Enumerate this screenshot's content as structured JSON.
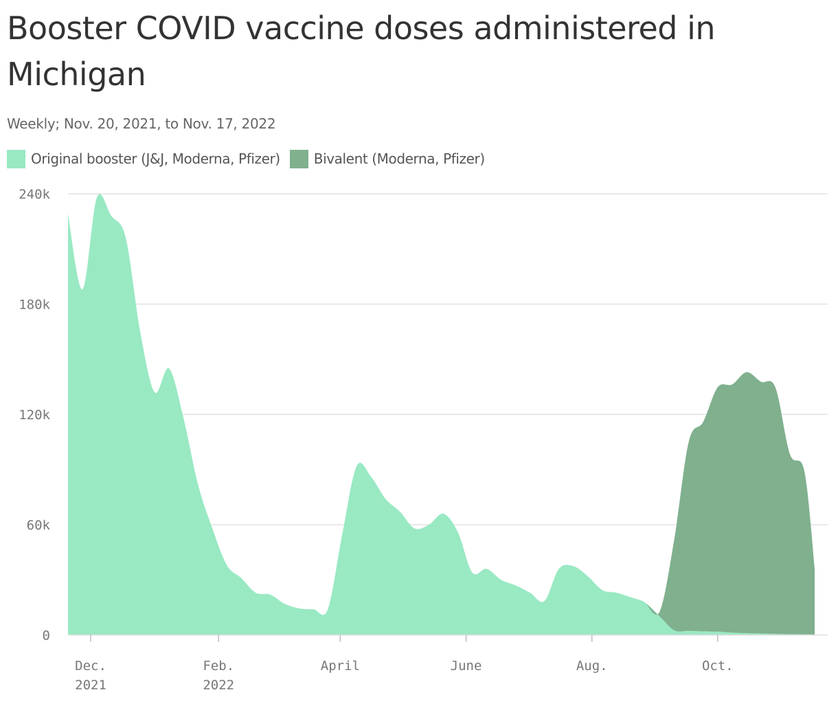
{
  "chart_data": {
    "type": "area",
    "title": "Booster COVID vaccine doses administered in Michigan",
    "subtitle": "Weekly; Nov. 20, 2021, to Nov. 17, 2022",
    "xlabel": "",
    "ylabel": "",
    "x_range": [
      "2021-11-20",
      "2022-11-17"
    ],
    "ylim": [
      0,
      240000
    ],
    "y_ticks": [
      {
        "value": 0,
        "label": "0"
      },
      {
        "value": 60000,
        "label": "60k"
      },
      {
        "value": 120000,
        "label": "120k"
      },
      {
        "value": 180000,
        "label": "180k"
      },
      {
        "value": 240000,
        "label": "240k"
      }
    ],
    "x_ticks": [
      {
        "date": "2021-12-01",
        "line1": "Dec.",
        "line2": "2021"
      },
      {
        "date": "2022-02-01",
        "line1": "Feb.",
        "line2": "2022"
      },
      {
        "date": "2022-04-01",
        "line1": "April",
        "line2": ""
      },
      {
        "date": "2022-06-01",
        "line1": "June",
        "line2": ""
      },
      {
        "date": "2022-08-01",
        "line1": "Aug.",
        "line2": ""
      },
      {
        "date": "2022-10-01",
        "line1": "Oct.",
        "line2": ""
      }
    ],
    "grid": true,
    "legend": "top-left",
    "stacked": true,
    "series": [
      {
        "name": "Original booster (J&J, Moderna, Pfizer)",
        "color": "#99e9c3",
        "points": [
          [
            "2021-11-20",
            229000
          ],
          [
            "2021-11-27",
            188000
          ],
          [
            "2021-12-04",
            238000
          ],
          [
            "2021-12-11",
            228000
          ],
          [
            "2021-12-18",
            216000
          ],
          [
            "2021-12-25",
            165000
          ],
          [
            "2022-01-01",
            132000
          ],
          [
            "2022-01-08",
            145000
          ],
          [
            "2022-01-15",
            118000
          ],
          [
            "2022-01-22",
            82000
          ],
          [
            "2022-01-29",
            58000
          ],
          [
            "2022-02-05",
            38000
          ],
          [
            "2022-02-12",
            31000
          ],
          [
            "2022-02-19",
            23000
          ],
          [
            "2022-02-26",
            22000
          ],
          [
            "2022-03-05",
            17000
          ],
          [
            "2022-03-12",
            14500
          ],
          [
            "2022-03-19",
            14000
          ],
          [
            "2022-03-26",
            14000
          ],
          [
            "2022-04-02",
            55000
          ],
          [
            "2022-04-09",
            92000
          ],
          [
            "2022-04-16",
            86000
          ],
          [
            "2022-04-23",
            74000
          ],
          [
            "2022-04-30",
            67000
          ],
          [
            "2022-05-07",
            58000
          ],
          [
            "2022-05-14",
            60000
          ],
          [
            "2022-05-21",
            66000
          ],
          [
            "2022-05-28",
            56000
          ],
          [
            "2022-06-04",
            34000
          ],
          [
            "2022-06-11",
            36000
          ],
          [
            "2022-06-18",
            30000
          ],
          [
            "2022-06-25",
            27000
          ],
          [
            "2022-07-02",
            23000
          ],
          [
            "2022-07-09",
            18500
          ],
          [
            "2022-07-16",
            36000
          ],
          [
            "2022-07-23",
            37500
          ],
          [
            "2022-07-30",
            32000
          ],
          [
            "2022-08-06",
            24500
          ],
          [
            "2022-08-13",
            23000
          ],
          [
            "2022-08-20",
            20500
          ],
          [
            "2022-08-27",
            17500
          ],
          [
            "2022-09-03",
            10000
          ],
          [
            "2022-09-10",
            2500
          ],
          [
            "2022-09-17",
            2300
          ],
          [
            "2022-09-24",
            2000
          ],
          [
            "2022-10-01",
            1800
          ],
          [
            "2022-10-08",
            1300
          ],
          [
            "2022-10-15",
            1000
          ],
          [
            "2022-10-22",
            800
          ],
          [
            "2022-10-29",
            600
          ],
          [
            "2022-11-05",
            400
          ],
          [
            "2022-11-12",
            300
          ],
          [
            "2022-11-17",
            200
          ]
        ]
      },
      {
        "name": "Bivalent (Moderna, Pfizer)",
        "color": "#80b08e",
        "points": [
          [
            "2022-08-27",
            0
          ],
          [
            "2022-09-03",
            3000
          ],
          [
            "2022-09-10",
            50000
          ],
          [
            "2022-09-17",
            103000
          ],
          [
            "2022-09-24",
            114000
          ],
          [
            "2022-10-01",
            133000
          ],
          [
            "2022-10-08",
            135000
          ],
          [
            "2022-10-15",
            142000
          ],
          [
            "2022-10-22",
            137000
          ],
          [
            "2022-10-29",
            134000
          ],
          [
            "2022-11-05",
            98000
          ],
          [
            "2022-11-12",
            89000
          ],
          [
            "2022-11-17",
            36000
          ]
        ]
      }
    ]
  }
}
